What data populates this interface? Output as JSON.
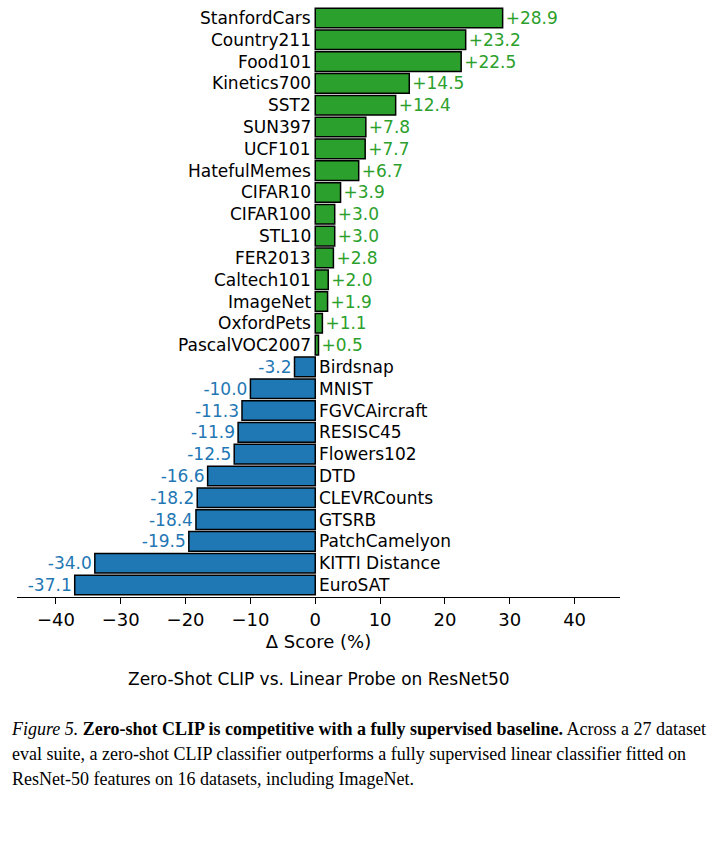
{
  "chart_data": {
    "type": "bar",
    "orientation": "horizontal",
    "title": "Zero-Shot CLIP vs. Linear Probe on ResNet50",
    "x_label": "Δ Score (%)",
    "categories": [
      "StanfordCars",
      "Country211",
      "Food101",
      "Kinetics700",
      "SST2",
      "SUN397",
      "UCF101",
      "HatefulMemes",
      "CIFAR10",
      "CIFAR100",
      "STL10",
      "FER2013",
      "Caltech101",
      "ImageNet",
      "OxfordPets",
      "PascalVOC2007",
      "Birdsnap",
      "MNIST",
      "FGVCAircraft",
      "RESISC45",
      "Flowers102",
      "DTD",
      "CLEVRCounts",
      "GTSRB",
      "PatchCamelyon",
      "KITTI Distance",
      "EuroSAT"
    ],
    "values": [
      28.9,
      23.2,
      22.5,
      14.5,
      12.4,
      7.8,
      7.7,
      6.7,
      3.9,
      3.0,
      3.0,
      2.8,
      2.0,
      1.9,
      1.1,
      0.5,
      -3.2,
      -10.0,
      -11.3,
      -11.9,
      -12.5,
      -16.6,
      -18.2,
      -18.4,
      -19.5,
      -34.0,
      -37.1
    ],
    "value_labels": [
      "+28.9",
      "+23.2",
      "+22.5",
      "+14.5",
      "+12.4",
      "+7.8",
      "+7.7",
      "+6.7",
      "+3.9",
      "+3.0",
      "+3.0",
      "+2.8",
      "+2.0",
      "+1.9",
      "+1.1",
      "+0.5",
      "-3.2",
      "-10.0",
      "-11.3",
      "-11.9",
      "-12.5",
      "-16.6",
      "-18.2",
      "-18.4",
      "-19.5",
      "-34.0",
      "-37.1"
    ],
    "colors": [
      "#2ca02c",
      "#2ca02c",
      "#2ca02c",
      "#2ca02c",
      "#2ca02c",
      "#2ca02c",
      "#2ca02c",
      "#2ca02c",
      "#2ca02c",
      "#2ca02c",
      "#2ca02c",
      "#2ca02c",
      "#2ca02c",
      "#2ca02c",
      "#2ca02c",
      "#2ca02c",
      "#1f77b4",
      "#1f77b4",
      "#1f77b4",
      "#1f77b4",
      "#1f77b4",
      "#1f77b4",
      "#1f77b4",
      "#1f77b4",
      "#1f77b4",
      "#1f77b4",
      "#1f77b4"
    ],
    "xlim": [
      -46,
      47
    ],
    "xticks": [
      {
        "value": -40,
        "label": "−40"
      },
      {
        "value": -30,
        "label": "−30"
      },
      {
        "value": -20,
        "label": "−20"
      },
      {
        "value": -10,
        "label": "−10"
      },
      0,
      10,
      20,
      30,
      40
    ],
    "grid": false,
    "data_labels": true,
    "tick_labels": "x",
    "caption": {
      "label": "Figure 5.",
      "heading": "Zero-shot CLIP is competitive with a fully supervised baseline.",
      "text": "Across a 27 dataset eval suite, a zero-shot CLIP classifier outperforms a fully supervised linear classifier fitted on ResNet-50 features on 16 datasets, including ImageNet."
    }
  }
}
